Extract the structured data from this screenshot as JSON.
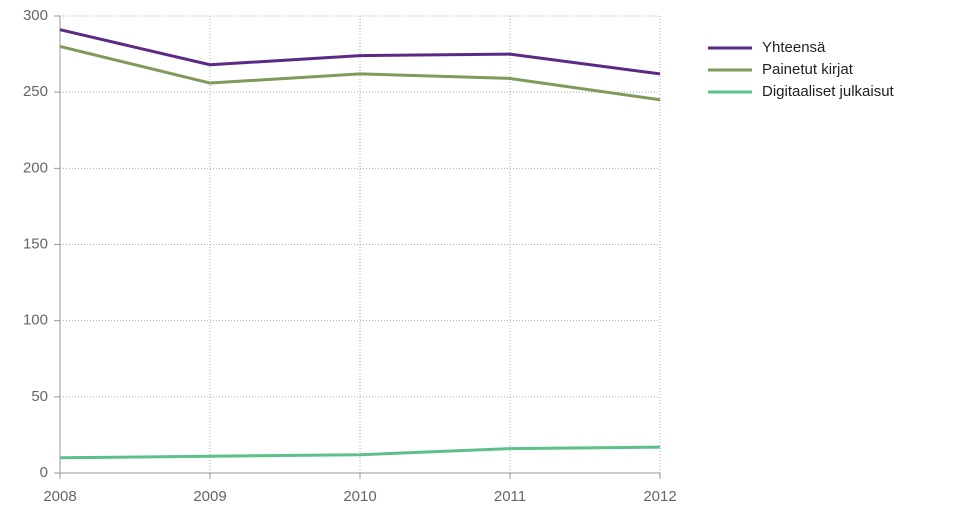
{
  "chart_data": {
    "type": "line",
    "categories": [
      "2008",
      "2009",
      "2010",
      "2011",
      "2012"
    ],
    "series": [
      {
        "name": "Yhteensä",
        "color": "#5b2a86",
        "values": [
          291,
          268,
          274,
          275,
          262
        ]
      },
      {
        "name": "Painetut kirjat",
        "color": "#7f9a5a",
        "values": [
          280,
          256,
          262,
          259,
          245
        ]
      },
      {
        "name": "Digitaaliset julkaisut",
        "color": "#5cc08a",
        "values": [
          10,
          11,
          12,
          16,
          17
        ]
      }
    ],
    "ylim": [
      0,
      300
    ],
    "yticks": [
      0,
      50,
      100,
      150,
      200,
      250,
      300
    ],
    "grid": true,
    "legend": "right"
  }
}
